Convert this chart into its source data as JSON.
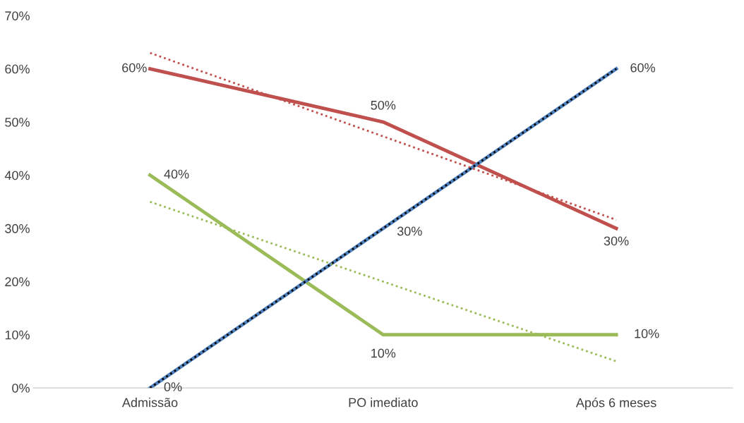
{
  "chart_data": {
    "type": "line",
    "categories": [
      "Admissão",
      "PO imediato",
      "Após 6 meses"
    ],
    "ylim": [
      0,
      70
    ],
    "yticks": [
      {
        "value": 0,
        "label": "0%"
      },
      {
        "value": 10,
        "label": "10%"
      },
      {
        "value": 20,
        "label": "20%"
      },
      {
        "value": 30,
        "label": "30%"
      },
      {
        "value": 40,
        "label": "40%"
      },
      {
        "value": 50,
        "label": "50%"
      },
      {
        "value": 60,
        "label": "60%"
      },
      {
        "value": 70,
        "label": "70%"
      }
    ],
    "grid": false,
    "legend": false,
    "marker": "none",
    "line_style": "solid",
    "series": [
      {
        "color": "#c0504d",
        "values": [
          60,
          50,
          30
        ],
        "value_labels": [
          "60%",
          "50%",
          "30%"
        ]
      },
      {
        "color": "#9bbb59",
        "values": [
          40,
          10,
          10
        ],
        "value_labels": [
          "40%",
          "10%",
          "10%"
        ]
      },
      {
        "color": "#4f81bd",
        "values": [
          0,
          30,
          60
        ],
        "value_labels": [
          "0%",
          "30%",
          "60%"
        ]
      },
      {
        "color": "#c0504d",
        "values": [
          63,
          47.3,
          31.6
        ],
        "line_style": "dotted"
      },
      {
        "color": "#9bbb59",
        "values": [
          35,
          20,
          5
        ],
        "line_style": "dotted"
      },
      {
        "color": "#000000",
        "values": [
          0,
          30,
          60
        ],
        "line_style": "dotted"
      }
    ]
  }
}
